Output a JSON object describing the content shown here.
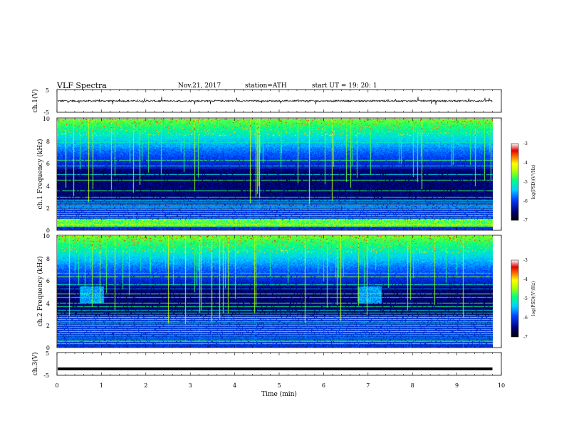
{
  "header": {
    "title": "VLF  Spectra",
    "date": "Nov.21, 2017",
    "station": "station=ATH",
    "start": "start  UT  =    19: 20: 1"
  },
  "chart_data": [
    {
      "type": "line",
      "panel": "ch1-waveform",
      "ylabel": "ch.1(V)",
      "yticks": [
        "5",
        "-5"
      ],
      "ylim": [
        -5,
        5
      ],
      "xlim": [
        0,
        10
      ],
      "x_range_data": [
        0,
        9.8
      ],
      "baseline": 0,
      "noise_amplitude": 0.7,
      "color": "#000000"
    },
    {
      "type": "heatmap",
      "panel": "ch1-spectrogram",
      "ylabel": "ch.1 Frequency  (kHz)",
      "yticks": [
        "10",
        "8",
        "6",
        "4",
        "2",
        "0"
      ],
      "ylim": [
        0,
        10
      ],
      "xlim": [
        0,
        10
      ],
      "x_range_data": [
        0,
        9.8
      ],
      "colorbar": {
        "label": "log(PSD)(V²/Hz)",
        "ticks": [
          "-3",
          "-4",
          "-5",
          "-6",
          "-7"
        ],
        "range": [
          -7,
          -3
        ]
      }
    },
    {
      "type": "heatmap",
      "panel": "ch2-spectrogram",
      "ylabel": "ch.2 Frequency  (kHz)",
      "yticks": [
        "10",
        "8",
        "6",
        "4",
        "2",
        "0"
      ],
      "ylim": [
        0,
        10
      ],
      "xlim": [
        0,
        10
      ],
      "x_range_data": [
        0,
        9.8
      ],
      "enhanced_intervals_min": [
        [
          0.5,
          1.05
        ],
        [
          6.75,
          7.3
        ]
      ],
      "enhanced_band_khz": [
        4.0,
        5.5
      ],
      "colorbar": {
        "label": "log(PSD)(V²/Hz)",
        "ticks": [
          "-3",
          "-4",
          "-5",
          "-6",
          "-7"
        ],
        "range": [
          -7,
          -3
        ]
      }
    },
    {
      "type": "line",
      "panel": "ch3-waveform",
      "ylabel": "ch.3(V)",
      "yticks": [
        "5",
        "-5"
      ],
      "ylim": [
        -5,
        5
      ],
      "xlim": [
        0,
        10
      ],
      "x_range_data": [
        0,
        9.8
      ],
      "baseline": -2.2,
      "color": "#000000"
    }
  ],
  "xaxis": {
    "label": "Time  (min)",
    "ticks": [
      "0",
      "1",
      "2",
      "3",
      "4",
      "5",
      "6",
      "7",
      "8",
      "9",
      "10"
    ]
  }
}
